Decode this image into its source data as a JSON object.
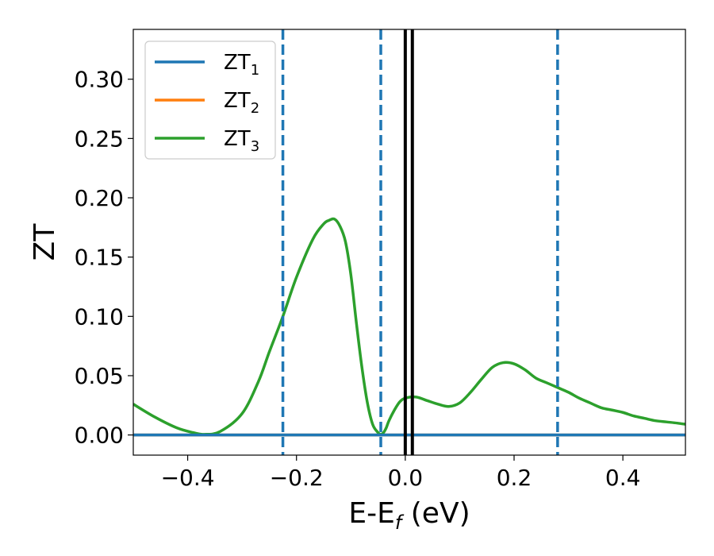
{
  "chart_data": {
    "type": "line",
    "xlabel": "E-E",
    "xlabel_subscript": "f",
    "xlabel_suffix": " (eV)",
    "ylabel": "ZT",
    "xlim": [
      -0.5,
      0.515
    ],
    "ylim": [
      -0.017,
      0.342
    ],
    "x_ticks": [
      -0.4,
      -0.2,
      0.0,
      0.2,
      0.4
    ],
    "x_tick_labels": [
      "−0.4",
      "−0.2",
      "0.0",
      "0.2",
      "0.4"
    ],
    "y_ticks": [
      0.0,
      0.05,
      0.1,
      0.15,
      0.2,
      0.25,
      0.3
    ],
    "y_tick_labels": [
      "0.00",
      "0.05",
      "0.10",
      "0.15",
      "0.20",
      "0.25",
      "0.30"
    ],
    "grid": false,
    "legend_position": "top-left",
    "series": [
      {
        "name": "ZT",
        "name_subscript": "1",
        "color": "#1f77b4",
        "x": [
          -0.5,
          0.515
        ],
        "y": [
          0.0,
          0.0
        ]
      },
      {
        "name": "ZT",
        "name_subscript": "2",
        "color": "#ff7f0e",
        "x": [
          -0.5,
          0.515
        ],
        "y": [
          0.0,
          0.0
        ]
      },
      {
        "name": "ZT",
        "name_subscript": "3",
        "color": "#2ca02c",
        "x": [
          -0.5,
          -0.46,
          -0.42,
          -0.39,
          -0.37,
          -0.34,
          -0.3,
          -0.27,
          -0.25,
          -0.225,
          -0.2,
          -0.17,
          -0.15,
          -0.14,
          -0.13,
          -0.12,
          -0.11,
          -0.1,
          -0.09,
          -0.08,
          -0.07,
          -0.06,
          -0.05,
          -0.045,
          -0.04,
          -0.035,
          -0.03,
          -0.02,
          -0.01,
          0.0,
          0.02,
          0.04,
          0.06,
          0.08,
          0.1,
          0.12,
          0.14,
          0.16,
          0.18,
          0.2,
          0.22,
          0.24,
          0.26,
          0.28,
          0.3,
          0.32,
          0.34,
          0.36,
          0.38,
          0.4,
          0.42,
          0.44,
          0.46,
          0.48,
          0.5,
          0.515
        ],
        "y": [
          0.026,
          0.015,
          0.006,
          0.002,
          0.0005,
          0.003,
          0.018,
          0.045,
          0.07,
          0.1,
          0.133,
          0.165,
          0.178,
          0.181,
          0.182,
          0.176,
          0.163,
          0.135,
          0.095,
          0.058,
          0.028,
          0.009,
          0.002,
          0.0005,
          0.002,
          0.006,
          0.012,
          0.021,
          0.028,
          0.031,
          0.032,
          0.029,
          0.026,
          0.024,
          0.027,
          0.036,
          0.047,
          0.057,
          0.061,
          0.06,
          0.055,
          0.048,
          0.044,
          0.04,
          0.036,
          0.031,
          0.027,
          0.023,
          0.021,
          0.019,
          0.016,
          0.014,
          0.012,
          0.011,
          0.01,
          0.009
        ]
      }
    ],
    "vlines": [
      {
        "x": -0.225,
        "style": "dashed",
        "color": "#1f77b4"
      },
      {
        "x": -0.045,
        "style": "dashed",
        "color": "#1f77b4"
      },
      {
        "x": 0.28,
        "style": "dashed",
        "color": "#1f77b4"
      },
      {
        "x": 0.0,
        "style": "solid",
        "color": "#000000"
      },
      {
        "x": 0.013,
        "style": "solid",
        "color": "#000000"
      }
    ]
  }
}
